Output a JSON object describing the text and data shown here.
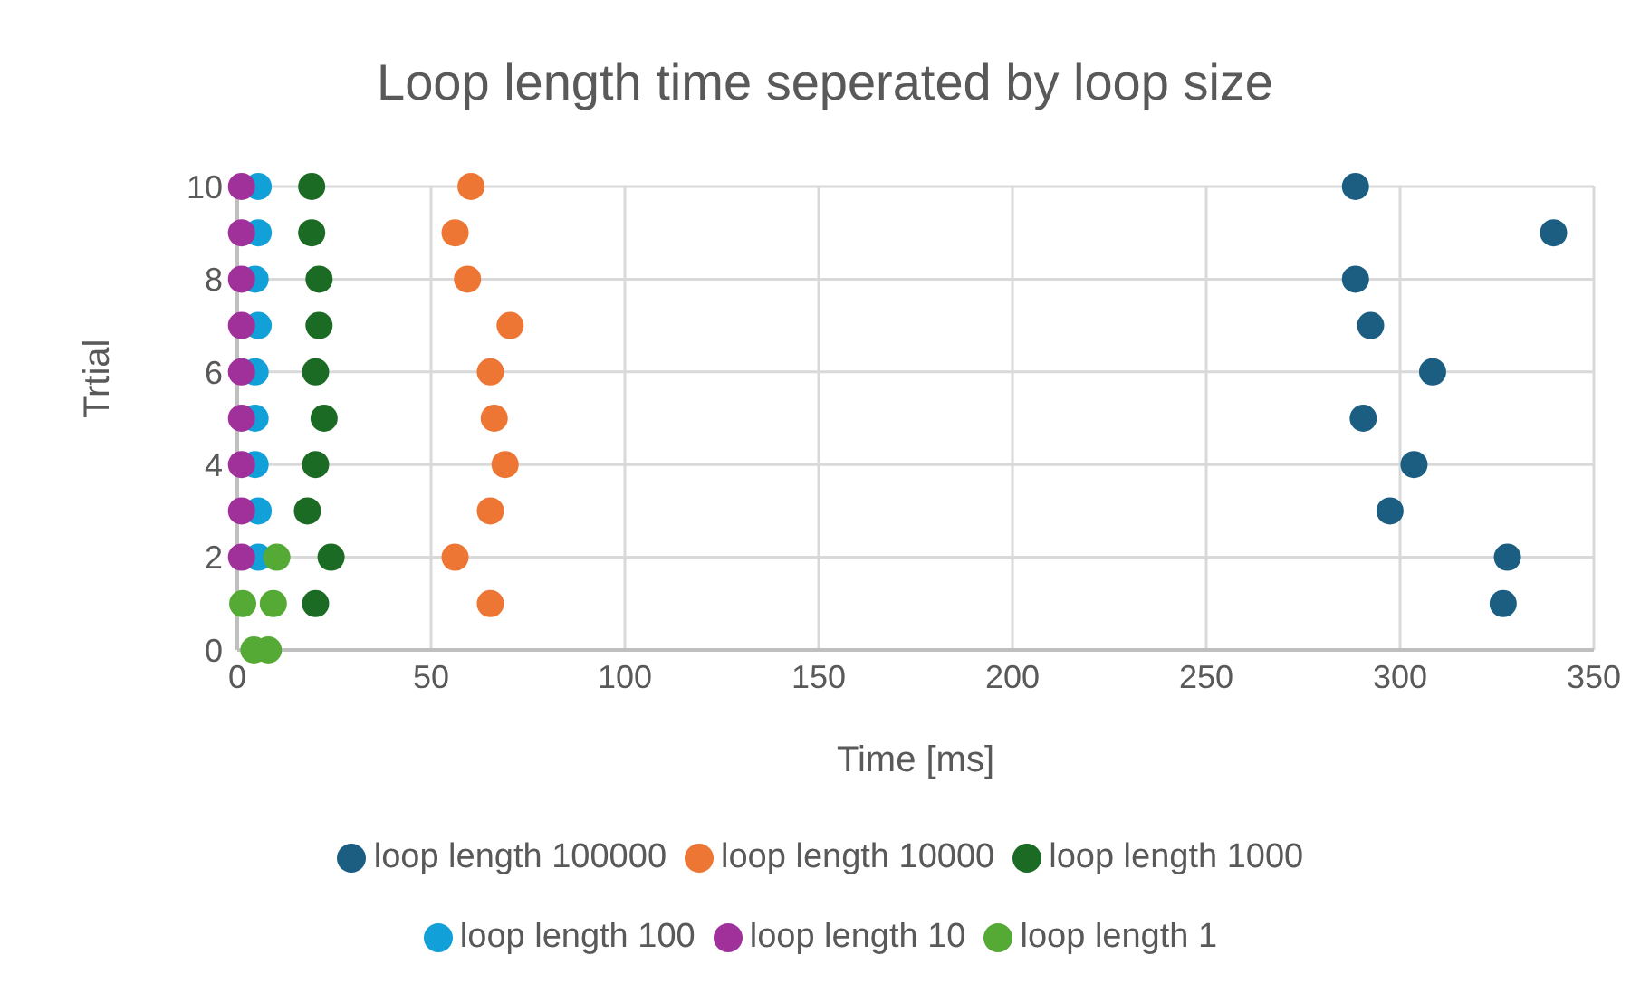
{
  "chart_data": {
    "type": "scatter",
    "title": "Loop length time seperated by loop size",
    "xlabel": "Time [ms]",
    "ylabel": "Trtial",
    "xlim": [
      0,
      350
    ],
    "xticks": [
      0,
      50,
      100,
      150,
      200,
      250,
      300,
      350
    ],
    "ylim": [
      0,
      10
    ],
    "yticks": [
      0,
      2,
      4,
      6,
      8,
      10
    ],
    "grid": true,
    "legend": "bottom",
    "marker": "circle",
    "series": [
      {
        "name": "loop length 100000",
        "color": "#1b5e82",
        "x": [
          326.6,
          327.7,
          297.4,
          303.6,
          290.5,
          308.4,
          292.4,
          288.5,
          339.6,
          288.5
        ],
        "values": [
          1,
          2,
          3,
          4,
          5,
          6,
          7,
          8,
          9,
          10
        ]
      },
      {
        "name": "loop length 10000",
        "color": "#ee7634",
        "x": [
          65.3,
          56.2,
          65.3,
          69.1,
          66.3,
          65.3,
          70.4,
          59.4,
          56.2,
          60.3
        ],
        "values": [
          1,
          2,
          3,
          4,
          5,
          6,
          7,
          8,
          9,
          10
        ]
      },
      {
        "name": "loop length 1000",
        "color": "#1c6b25",
        "x": [
          20.2,
          24.2,
          18.1,
          20.2,
          22.4,
          20.2,
          21.1,
          21.1,
          19.2,
          19.2
        ],
        "values": [
          1,
          2,
          3,
          4,
          5,
          6,
          7,
          8,
          9,
          10
        ]
      },
      {
        "name": "loop length 100",
        "color": "#12a0d8",
        "x": [
          5.4,
          5.4,
          4.6,
          4.6,
          4.6,
          5.4,
          4.6,
          5.4,
          5.4
        ],
        "values": [
          2,
          3,
          4,
          5,
          6,
          7,
          8,
          9,
          10
        ]
      },
      {
        "name": "loop length 10",
        "color": "#a0319a",
        "x": [
          1.1,
          1.1,
          1.1,
          1.1,
          1.1,
          1.1,
          1.1,
          1.1,
          1.1
        ],
        "values": [
          2,
          3,
          4,
          5,
          6,
          7,
          8,
          9,
          10
        ]
      },
      {
        "name": "loop length 1",
        "color": "#55aa35",
        "x": [
          4.3,
          8,
          1.4,
          9.3,
          10.2
        ],
        "values": [
          0,
          0,
          1,
          1,
          2
        ]
      }
    ]
  }
}
